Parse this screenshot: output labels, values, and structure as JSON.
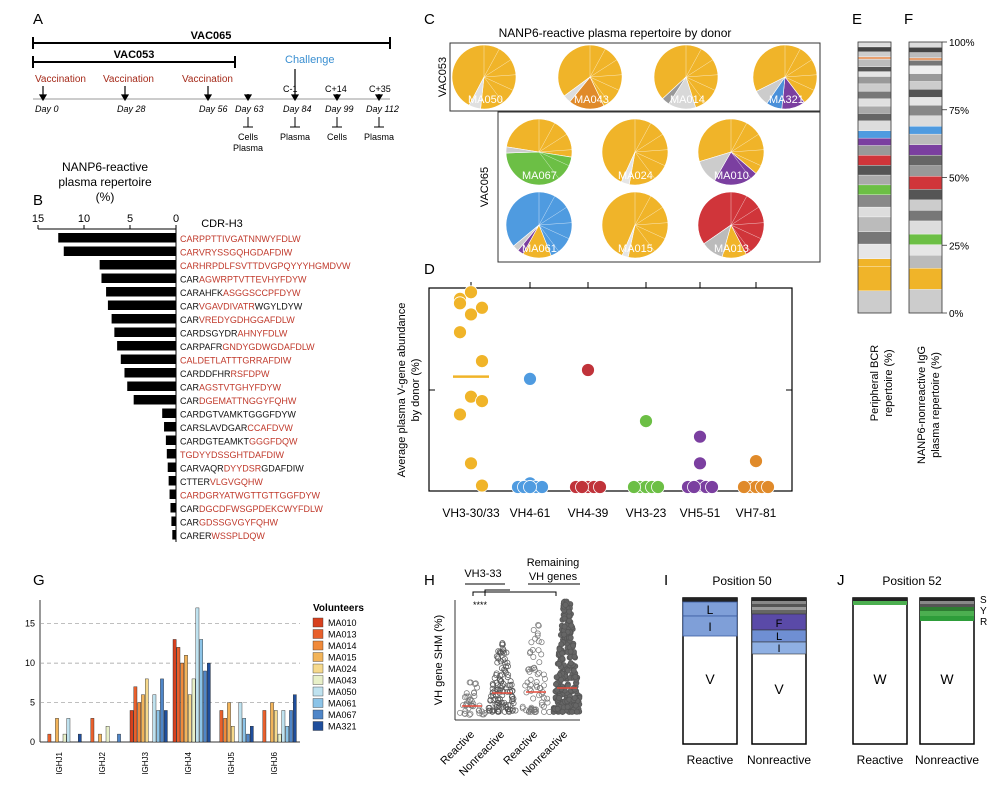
{
  "panel_labels": [
    "A",
    "B",
    "C",
    "D",
    "E",
    "F",
    "G",
    "H",
    "I",
    "J"
  ],
  "panel_a": {
    "studies": [
      "VAC065",
      "VAC053"
    ],
    "events": [
      {
        "label": "Vaccination",
        "day": "Day 0"
      },
      {
        "label": "Vaccination",
        "day": "Day 28"
      },
      {
        "label": "Vaccination",
        "day": "Day 56"
      }
    ],
    "challenge_label": "Challenge",
    "c_labels": [
      "C-1",
      "C+14",
      "C+35"
    ],
    "days_after": [
      "Day 63",
      "Day 84",
      "Day 99",
      "Day 112"
    ],
    "samples": [
      "Cells",
      "Plasma",
      "Plasma",
      "Cells",
      "Plasma"
    ]
  },
  "panel_b": {
    "title_lines": [
      "NANP6-reactive",
      "plasma repertoire",
      "(%)"
    ],
    "column_label": "CDR-H3",
    "axis_ticks": [
      "15",
      "10",
      "5",
      "0"
    ],
    "rows": [
      {
        "value": 12.8,
        "prefix": "",
        "red": "CARPPTTIVGATNNWYFDLW",
        "tail": ""
      },
      {
        "value": 12.2,
        "prefix": "",
        "red": "CARVRYSSGQHGDAFDIW",
        "tail": ""
      },
      {
        "value": 8.3,
        "prefix": "",
        "red": "CARHRPDLFSVTTDVGPQYYYHGMDVW",
        "tail": ""
      },
      {
        "value": 8.1,
        "prefix": "CAR",
        "red": "AGWRPTVTTEVHYFDYW",
        "tail": ""
      },
      {
        "value": 7.6,
        "prefix": "CARAHFK",
        "red": "ASGGSCCPFDYW",
        "tail": ""
      },
      {
        "value": 7.4,
        "prefix": "CAR",
        "red": "VGAVDIVATR",
        "tail": "WGYLDYW"
      },
      {
        "value": 7.0,
        "prefix": "CAR",
        "red": "VREDYGDHGGAFDLW",
        "tail": ""
      },
      {
        "value": 6.7,
        "prefix": "CARDSGYDR",
        "red": "AHNYFDLW",
        "tail": ""
      },
      {
        "value": 6.4,
        "prefix": "CARPAFR",
        "red": "GNDYGDWGDAFDLW",
        "tail": ""
      },
      {
        "value": 6.0,
        "prefix": "",
        "red": "CALDETLATTTGRRAFDIW",
        "tail": ""
      },
      {
        "value": 5.6,
        "prefix": "CARDDFHR",
        "red": "RSFDPW",
        "tail": ""
      },
      {
        "value": 5.3,
        "prefix": "CAR",
        "red": "AGSTVTGHYFDYW",
        "tail": ""
      },
      {
        "value": 4.6,
        "prefix": "CAR",
        "red": "DGEMATTNGGYFQHW",
        "tail": ""
      },
      {
        "value": 1.5,
        "prefix": "CARDGTVAMKTGGGFDYW",
        "red": "",
        "tail": ""
      },
      {
        "value": 1.3,
        "prefix": "CARSLAVDGAR",
        "red": "CCAFDVW",
        "tail": ""
      },
      {
        "value": 1.1,
        "prefix": "CARDGTEAMKT",
        "red": "GGGFDQW",
        "tail": ""
      },
      {
        "value": 1.0,
        "prefix": "",
        "red": "TGDYYDSSGHTDAFDIW",
        "tail": ""
      },
      {
        "value": 0.9,
        "prefix": "CARVAQR",
        "red": "DYYDSR",
        "tail": "GDAFDIW"
      },
      {
        "value": 0.8,
        "prefix": "CTTER",
        "red": "VLGVGQHW",
        "tail": ""
      },
      {
        "value": 0.7,
        "prefix": "",
        "red": "CARDGRYATWGTTGTTGGFDYW",
        "tail": ""
      },
      {
        "value": 0.6,
        "prefix": "CAR",
        "red": "DGCDFWSGPDEKCWYFDLW",
        "tail": ""
      },
      {
        "value": 0.5,
        "prefix": "CAR",
        "red": "GDSSGVGYFQHW",
        "tail": ""
      },
      {
        "value": 0.4,
        "prefix": "CARER",
        "red": "WSSPLDQW",
        "tail": ""
      }
    ]
  },
  "panel_c": {
    "title": "NANP6-reactive plasma repertoire by donor",
    "group_labels": [
      "VAC053",
      "VAC065"
    ],
    "donors": [
      {
        "name": "MA050",
        "slices": [
          {
            "v": 94,
            "c": "#f0b429"
          },
          {
            "v": 6,
            "c": "#e0e0e0"
          }
        ]
      },
      {
        "name": "MA043",
        "slices": [
          {
            "v": 78,
            "c": "#f0b429"
          },
          {
            "v": 18,
            "c": "#e08a2a"
          },
          {
            "v": 4,
            "c": "#dddddd"
          }
        ]
      },
      {
        "name": "MA014",
        "slices": [
          {
            "v": 82,
            "c": "#f0b429"
          },
          {
            "v": 14,
            "c": "#d8d8d8"
          },
          {
            "v": 4,
            "c": "#999999"
          }
        ]
      },
      {
        "name": "MA321",
        "slices": [
          {
            "v": 72,
            "c": "#f0b429"
          },
          {
            "v": 12,
            "c": "#7b3fa0"
          },
          {
            "v": 8,
            "c": "#4a90d9"
          },
          {
            "v": 8,
            "c": "#cccccc"
          }
        ]
      },
      {
        "name": "MA067",
        "slices": [
          {
            "v": 50,
            "c": "#f0b429"
          },
          {
            "v": 47,
            "c": "#6cbf45"
          },
          {
            "v": 3,
            "c": "#cccccc"
          }
        ]
      },
      {
        "name": "MA024",
        "slices": [
          {
            "v": 96,
            "c": "#f0b429"
          },
          {
            "v": 4,
            "c": "#e5e5e5"
          }
        ]
      },
      {
        "name": "MA010",
        "slices": [
          {
            "v": 66,
            "c": "#f0b429"
          },
          {
            "v": 22,
            "c": "#7b3fa0"
          },
          {
            "v": 12,
            "c": "#cccccc"
          }
        ]
      },
      {
        "name": "MA061",
        "slices": [
          {
            "v": 80,
            "c": "#4f9be0"
          },
          {
            "v": 14,
            "c": "#f0b429"
          },
          {
            "v": 3,
            "c": "#7b3fa0"
          },
          {
            "v": 3,
            "c": "#cccccc"
          }
        ]
      },
      {
        "name": "MA015",
        "slices": [
          {
            "v": 97,
            "c": "#f0b429"
          },
          {
            "v": 3,
            "c": "#e5e5e5"
          }
        ]
      },
      {
        "name": "MA013",
        "slices": [
          {
            "v": 77,
            "c": "#d0353a"
          },
          {
            "v": 12,
            "c": "#f0b429"
          },
          {
            "v": 11,
            "c": "#bbbbbb"
          }
        ]
      }
    ]
  },
  "panel_d": {
    "ylabel_lines": [
      "Average plasma V-gene abundance",
      "by donor (%)"
    ],
    "genes": [
      {
        "name": "VH3-30/33",
        "color": "#f0b429",
        "points": [
          86,
          89,
          82,
          84,
          79,
          58,
          71,
          42,
          40,
          34,
          12,
          2
        ],
        "mean": 51
      },
      {
        "name": "VH4-61",
        "color": "#4f9be0",
        "points": [
          50,
          3,
          0,
          0,
          0,
          0,
          0,
          0
        ],
        "mean": 0
      },
      {
        "name": "VH4-39",
        "color": "#c0333a",
        "points": [
          54,
          0,
          0,
          0,
          0,
          0,
          0
        ],
        "mean": 0
      },
      {
        "name": "VH3-23",
        "color": "#6cbf45",
        "points": [
          31,
          0,
          0,
          0,
          0,
          0
        ],
        "mean": 0
      },
      {
        "name": "VH5-51",
        "color": "#7b3fa0",
        "points": [
          24,
          12,
          2,
          0,
          0,
          0,
          0
        ],
        "mean": 0
      },
      {
        "name": "VH7-81",
        "color": "#e08a2a",
        "points": [
          13,
          0,
          0,
          0,
          0,
          0
        ],
        "mean": 0
      }
    ]
  },
  "panel_e": {
    "label_lines": [
      "Peripheral BCR",
      "repertoire (%)"
    ],
    "segments": [
      "#cccccc",
      "#f0b429",
      "#f0b429",
      "#e6e6e6",
      "#777777",
      "#bbbbbb",
      "#dddddd",
      "#888888",
      "#6cbf45",
      "#aaaaaa",
      "#555555",
      "#d0353a",
      "#999999",
      "#7b3fa0",
      "#4f9be0",
      "#dddddd",
      "#666666",
      "#aaaaaa",
      "#e0e0e0",
      "#777777",
      "#cccccc",
      "#999999",
      "#e6e6e6",
      "#555555",
      "#bbbbbb",
      "#e8a070",
      "#cccccc",
      "#444444",
      "#dddddd"
    ],
    "weights": [
      9,
      10,
      3,
      6,
      5,
      6,
      4,
      5,
      4,
      4,
      4,
      4,
      4,
      3,
      3,
      4,
      3,
      3,
      3,
      3,
      3,
      3,
      2,
      2,
      3,
      1,
      2,
      2,
      2
    ]
  },
  "panel_f": {
    "label_lines": [
      "NANP6-nonreactive IgG",
      "plasma repertoire (%)"
    ],
    "ticks": [
      "100%",
      "75%",
      "50%",
      "25%",
      "0%"
    ],
    "segments": [
      "#cccccc",
      "#f0b429",
      "#bbbbbb",
      "#e6e6e6",
      "#6cbf45",
      "#dddddd",
      "#777777",
      "#cccccc",
      "#555555",
      "#d0353a",
      "#999999",
      "#666666",
      "#7b3fa0",
      "#bbbbbb",
      "#4f9be0",
      "#dddddd",
      "#888888",
      "#e6e6e6",
      "#555555",
      "#cccccc",
      "#999999",
      "#eeeeee",
      "#777777",
      "#e8a070",
      "#bbbbbb",
      "#444444",
      "#dddddd"
    ],
    "weights": [
      9,
      8,
      5,
      4,
      4,
      5,
      4,
      4,
      4,
      5,
      4,
      4,
      4,
      4,
      3,
      4,
      4,
      3,
      3,
      3,
      3,
      3,
      2,
      1,
      2,
      2,
      2
    ]
  },
  "panel_g": {
    "ylim": [
      0,
      18
    ],
    "yticks": [
      "0",
      "5",
      "10",
      "15"
    ],
    "categories": [
      "IGHJ1",
      "IGHJ2",
      "IGHJ3",
      "IGHJ4",
      "IGHJ5",
      "IGHJ6"
    ],
    "legend_title": "Volunteers",
    "volunteers": [
      {
        "name": "MA010",
        "color": "#d7401e"
      },
      {
        "name": "MA013",
        "color": "#e8602c"
      },
      {
        "name": "MA014",
        "color": "#f08a3a"
      },
      {
        "name": "MA015",
        "color": "#f2b45a"
      },
      {
        "name": "MA024",
        "color": "#f6d98c"
      },
      {
        "name": "MA043",
        "color": "#e8f0c8"
      },
      {
        "name": "MA050",
        "color": "#bfe2ef"
      },
      {
        "name": "MA061",
        "color": "#8cc4e8"
      },
      {
        "name": "MA067",
        "color": "#4f86c8"
      },
      {
        "name": "MA321",
        "color": "#1f4e9c"
      }
    ],
    "values": [
      [
        0,
        1,
        0,
        3,
        0,
        1,
        3,
        0,
        0,
        1
      ],
      [
        0,
        3,
        0,
        1,
        0,
        2,
        0,
        0,
        1,
        0
      ],
      [
        4,
        7,
        5,
        6,
        8,
        0,
        6,
        4,
        8,
        4
      ],
      [
        13,
        12,
        10,
        11,
        6,
        8,
        17,
        13,
        9,
        10
      ],
      [
        0,
        4,
        3,
        5,
        2,
        0,
        5,
        3,
        1,
        2
      ],
      [
        0,
        4,
        0,
        5,
        4,
        1,
        4,
        2,
        4,
        6
      ]
    ]
  },
  "panel_h": {
    "ylabel": "VH gene SHM (%)",
    "group_vh333": "VH3-33",
    "group_remaining_lines": [
      "Remaining",
      "VH genes"
    ],
    "significance": "****",
    "x_labels": [
      "Reactive",
      "Nonreactive",
      "Reactive",
      "Nonreactive"
    ]
  },
  "panel_i": {
    "title": "Position 50",
    "x_labels": [
      "Reactive",
      "Nonreactive"
    ],
    "reactive_residues": [
      "L",
      "I",
      "V"
    ],
    "nonreactive_residues": [
      "F",
      "L",
      "I",
      "V"
    ]
  },
  "panel_j": {
    "title": "Position 52",
    "x_labels": [
      "Reactive",
      "Nonreactive"
    ],
    "reactive_residue": "W",
    "nonreactive_residue": "W",
    "side_labels": [
      "S",
      "Y",
      "R"
    ]
  }
}
